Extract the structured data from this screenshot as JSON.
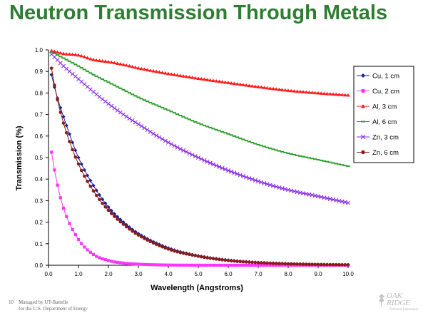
{
  "slide": {
    "title": "Neutron Transmission Through Metals",
    "footer_number": "10",
    "footer_line1": "Managed by UT-Battelle",
    "footer_line2": "for the U.S. Department of Energy",
    "logo_line1": "OAK",
    "logo_line2": "RIDGE",
    "logo_line3": "National Laboratory"
  },
  "chart_data": {
    "type": "line",
    "title": "",
    "xlabel": "Wavelength (Angstroms)",
    "ylabel": "Transmission (%)",
    "xlim": [
      0,
      10
    ],
    "ylim": [
      0,
      1
    ],
    "x_ticks": [
      "0.0",
      "1.0",
      "2.0",
      "3.0",
      "4.0",
      "5.0",
      "6.0",
      "7.0",
      "8.0",
      "9.0",
      "10.0"
    ],
    "y_ticks": [
      "0.0",
      "0.1",
      "0.2",
      "0.3",
      "0.4",
      "0.5",
      "0.6",
      "0.7",
      "0.8",
      "0.9",
      "1.0"
    ],
    "grid": false,
    "legend_position": "right",
    "x": [
      0.1,
      0.25,
      0.5,
      1.0,
      1.5,
      2.0,
      2.5,
      3.0,
      4.0,
      5.0,
      6.0,
      7.0,
      8.0,
      9.0,
      10.0
    ],
    "series": [
      {
        "name": "Cu, 1 cm",
        "color": "#1f1f8f",
        "marker": "diamond",
        "values": [
          0.885,
          0.8,
          0.69,
          0.5,
          0.37,
          0.27,
          0.2,
          0.147,
          0.08,
          0.044,
          0.024,
          0.013,
          0.0072,
          0.004,
          0.0022
        ]
      },
      {
        "name": "Cu, 2 cm",
        "color": "#ff33ff",
        "marker": "square",
        "values": [
          0.525,
          0.405,
          0.265,
          0.12,
          0.05,
          0.022,
          0.01,
          0.005,
          0.001,
          0.0003,
          0.0001,
          0.0,
          0.0,
          0.0,
          0.0
        ]
      },
      {
        "name": "Al, 3 cm",
        "color": "#ff1a1a",
        "marker": "triangle",
        "values": [
          0.997,
          0.991,
          0.983,
          0.976,
          0.955,
          0.945,
          0.932,
          0.916,
          0.89,
          0.868,
          0.848,
          0.829,
          0.812,
          0.8,
          0.79
        ]
      },
      {
        "name": "Al, 6 cm",
        "color": "#2ca02c",
        "marker": "dash",
        "values": [
          0.99,
          0.98,
          0.962,
          0.925,
          0.885,
          0.85,
          0.815,
          0.78,
          0.72,
          0.66,
          0.61,
          0.56,
          0.52,
          0.49,
          0.46
        ]
      },
      {
        "name": "Zn, 3 cm",
        "color": "#8a2be2",
        "marker": "x",
        "values": [
          0.98,
          0.96,
          0.925,
          0.865,
          0.805,
          0.75,
          0.7,
          0.655,
          0.57,
          0.5,
          0.44,
          0.39,
          0.35,
          0.32,
          0.29
        ]
      },
      {
        "name": "Zn, 6 cm",
        "color": "#8b1a1a",
        "marker": "circle",
        "values": [
          0.915,
          0.8,
          0.66,
          0.47,
          0.345,
          0.255,
          0.19,
          0.14,
          0.075,
          0.042,
          0.022,
          0.012,
          0.0065,
          0.0035,
          0.0019
        ]
      }
    ]
  }
}
